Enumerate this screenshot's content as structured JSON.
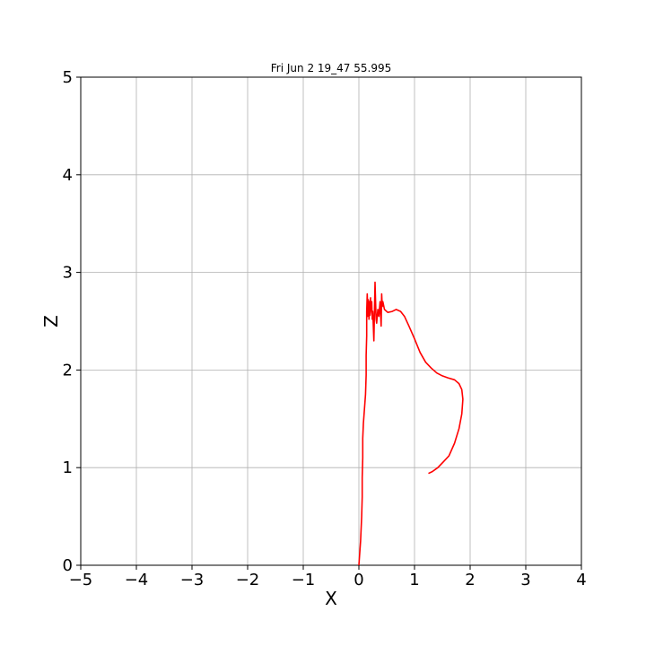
{
  "chart_data": {
    "type": "line",
    "title": "Fri Jun  2 19_47 55.995",
    "xlabel": "X",
    "ylabel": "Z",
    "xlim": [
      -5,
      4
    ],
    "ylim": [
      0,
      5
    ],
    "xticks": [
      "−5",
      "−4",
      "−3",
      "−2",
      "−1",
      "0",
      "1",
      "2",
      "3",
      "4"
    ],
    "yticks": [
      "0",
      "1",
      "2",
      "3",
      "4",
      "5"
    ],
    "xtick_values": [
      -5,
      -4,
      -3,
      -2,
      -1,
      0,
      1,
      2,
      3,
      4
    ],
    "ytick_values": [
      0,
      1,
      2,
      3,
      4,
      5
    ],
    "grid": true,
    "series": [
      {
        "color": "#ff0000",
        "x": [
          0.0,
          0.03,
          0.05,
          0.06,
          0.06,
          0.07,
          0.07,
          0.08,
          0.1,
          0.12,
          0.13,
          0.13,
          0.14,
          0.14,
          0.14,
          0.15,
          0.16,
          0.17,
          0.16,
          0.19,
          0.18,
          0.21,
          0.2,
          0.23,
          0.24,
          0.25,
          0.27,
          0.28,
          0.29,
          0.3,
          0.31,
          0.32,
          0.34,
          0.36,
          0.38,
          0.4,
          0.41,
          0.42,
          0.43,
          0.46,
          0.52,
          0.6,
          0.67,
          0.75,
          0.82,
          0.9,
          1.0,
          1.1,
          1.2,
          1.3,
          1.4,
          1.5,
          1.6,
          1.72,
          1.8,
          1.85,
          1.87,
          1.85,
          1.8,
          1.72,
          1.62,
          1.52,
          1.42,
          1.32,
          1.25
        ],
        "y": [
          0.0,
          0.25,
          0.5,
          0.7,
          0.9,
          1.1,
          1.3,
          1.45,
          1.6,
          1.75,
          1.95,
          2.15,
          2.35,
          2.55,
          2.6,
          2.78,
          2.6,
          2.72,
          2.55,
          2.7,
          2.52,
          2.74,
          2.56,
          2.7,
          2.52,
          2.6,
          2.3,
          2.62,
          2.9,
          2.7,
          2.52,
          2.48,
          2.62,
          2.55,
          2.7,
          2.45,
          2.78,
          2.65,
          2.7,
          2.62,
          2.59,
          2.6,
          2.62,
          2.6,
          2.55,
          2.45,
          2.32,
          2.18,
          2.08,
          2.02,
          1.97,
          1.94,
          1.92,
          1.9,
          1.86,
          1.8,
          1.7,
          1.55,
          1.4,
          1.25,
          1.12,
          1.06,
          1.0,
          0.96,
          0.94
        ]
      }
    ]
  }
}
